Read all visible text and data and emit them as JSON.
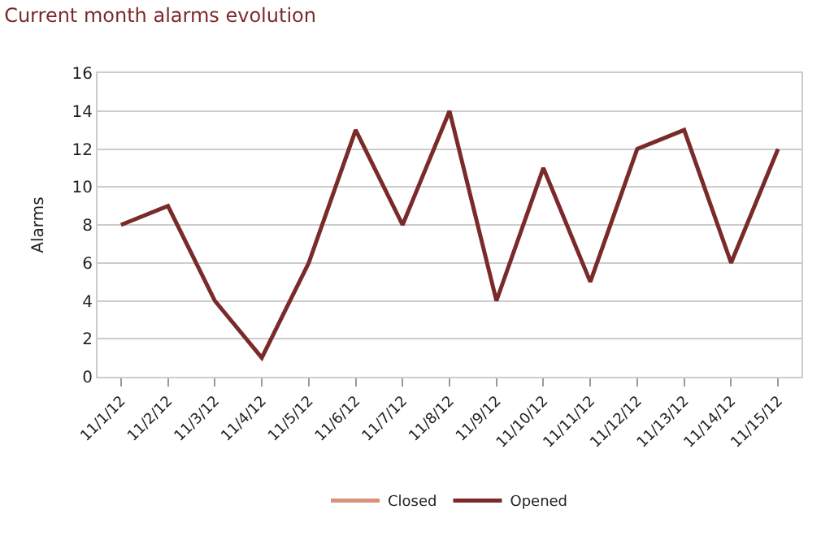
{
  "chart_data": {
    "type": "line",
    "title": "Current month alarms evolution",
    "ylabel": "Alarms",
    "categories": [
      "11/1/12",
      "11/2/12",
      "11/3/12",
      "11/4/12",
      "11/5/12",
      "11/6/12",
      "11/7/12",
      "11/8/12",
      "11/9/12",
      "11/10/12",
      "11/11/12",
      "11/12/12",
      "11/13/12",
      "11/14/12",
      "11/15/12"
    ],
    "series": [
      {
        "name": "Closed",
        "color": "#d9917a",
        "values": [
          null,
          null,
          null,
          null,
          null,
          null,
          null,
          null,
          null,
          null,
          null,
          null,
          null,
          null,
          null
        ]
      },
      {
        "name": "Opened",
        "color": "#7b2a2a",
        "values": [
          8,
          9,
          4,
          1,
          6,
          13,
          8,
          14,
          4,
          11,
          5,
          12,
          13,
          6,
          12
        ]
      }
    ],
    "ylim": [
      0,
      16
    ],
    "yticks": [
      0,
      2,
      4,
      6,
      8,
      10,
      12,
      14,
      16
    ],
    "grid": "y",
    "legend": "bottom",
    "marker": "none",
    "line_style": "solid"
  }
}
